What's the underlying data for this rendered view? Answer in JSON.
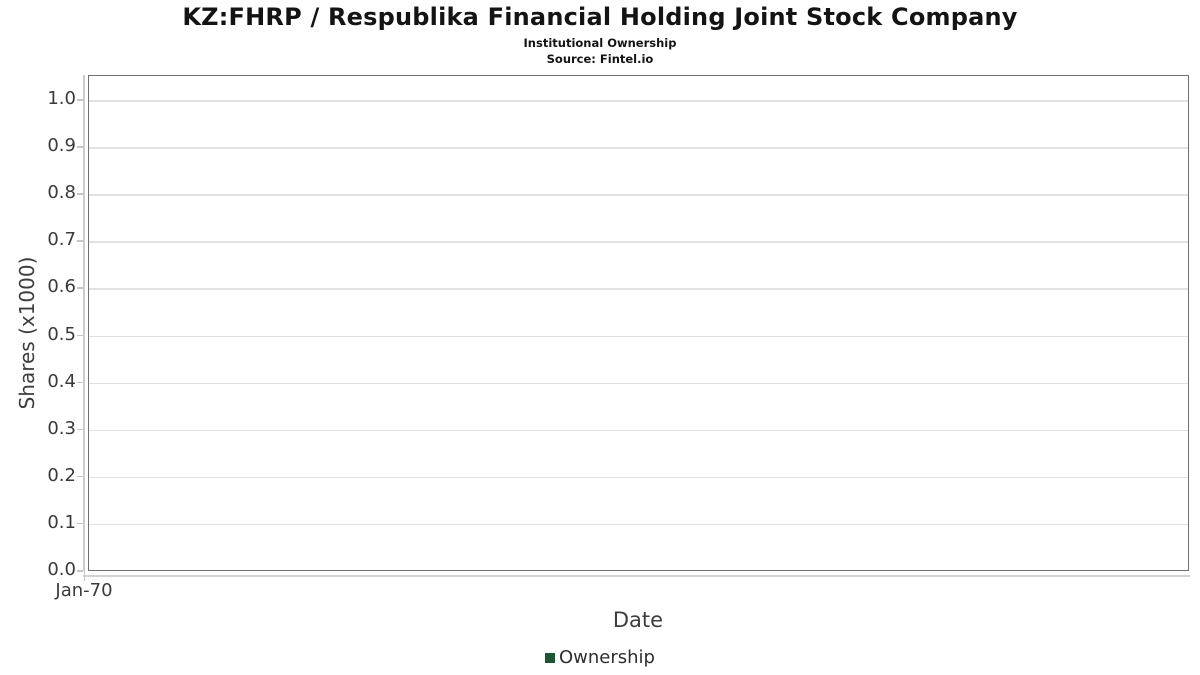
{
  "header": {
    "title": "KZ:FHRP / Respublika Financial Holding Joint Stock Company",
    "subtitle": "Institutional Ownership",
    "source": "Source: Fintel.io"
  },
  "chart_data": {
    "type": "line",
    "title": "KZ:FHRP / Respublika Financial Holding Joint Stock Company",
    "subtitle": "Institutional Ownership",
    "source": "Source: Fintel.io",
    "xlabel": "Date",
    "ylabel": "Shares (x1000)",
    "x_tick_labels": [
      "Jan-70"
    ],
    "y_tick_labels": [
      "0.0",
      "0.1",
      "0.2",
      "0.3",
      "0.4",
      "0.5",
      "0.6",
      "0.7",
      "0.8",
      "0.9",
      "1.0"
    ],
    "ylim": [
      0.0,
      1.05
    ],
    "grid": true,
    "legend_position": "bottom",
    "legend": [
      {
        "label": "Ownership",
        "color": "#1e5631"
      }
    ],
    "series": [
      {
        "name": "Ownership",
        "x": [],
        "y": []
      }
    ]
  },
  "colors": {
    "plot_border": "#6f6f6f",
    "gridline": "#e2e2e2",
    "axis_line": "#cccccc",
    "tick_text": "#3a3a3a",
    "title_text": "#141414",
    "legend_marker": "#1e5631"
  }
}
